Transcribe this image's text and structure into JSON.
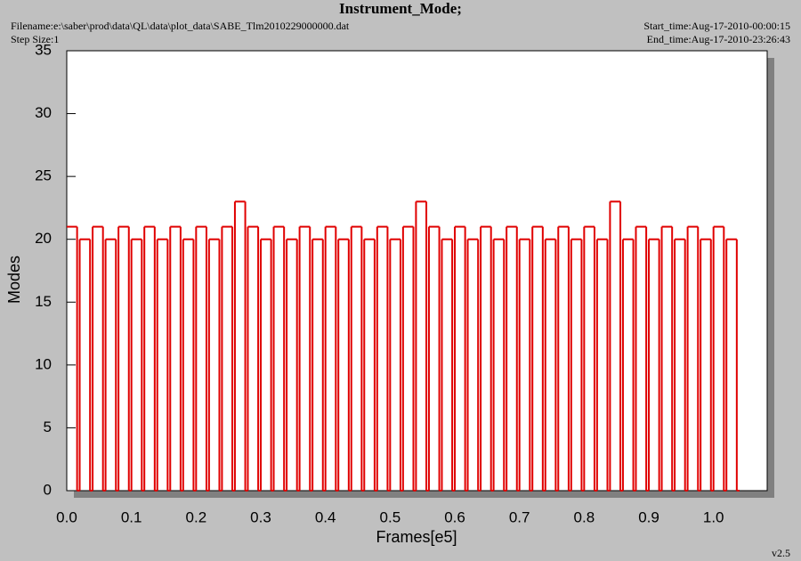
{
  "chart_data": {
    "type": "step",
    "title": "Instrument_Mode;",
    "filename": "Filename:e:\\saber\\prod\\data\\QL\\data\\plot_data\\SABE_Tlm2010229000000.dat",
    "step_size": "Step Size:1",
    "start_time": "Start_time:Aug-17-2010-00:00:15",
    "end_time": "End_time:Aug-17-2010-23:26:43",
    "version": "v2.5",
    "x_label": "Frames[e5]",
    "y_label": "Modes",
    "xlim": [
      0,
      1.083
    ],
    "ylim": [
      0,
      35
    ],
    "xticks": [
      {
        "value": 0,
        "label": "0.0"
      },
      0.1,
      0.2,
      0.3,
      0.4,
      0.5,
      0.6,
      0.7,
      0.8,
      0.9,
      {
        "value": 1,
        "label": "1.0"
      }
    ],
    "yticks": [
      0,
      5,
      10,
      15,
      20,
      25,
      30,
      35
    ],
    "series": [
      {
        "color": "#e00000",
        "x": [
          0,
          0.016,
          0.02,
          0.036,
          0.04,
          0.056,
          0.06,
          0.076,
          0.08,
          0.096,
          0.1,
          0.116,
          0.12,
          0.136,
          0.14,
          0.156,
          0.16,
          0.176,
          0.18,
          0.196,
          0.2,
          0.216,
          0.22,
          0.236,
          0.24,
          0.256,
          0.26,
          0.276,
          0.28,
          0.296,
          0.3,
          0.316,
          0.32,
          0.336,
          0.34,
          0.356,
          0.36,
          0.376,
          0.38,
          0.396,
          0.4,
          0.416,
          0.42,
          0.436,
          0.44,
          0.456,
          0.46,
          0.476,
          0.48,
          0.496,
          0.5,
          0.516,
          0.52,
          0.536,
          0.54,
          0.556,
          0.56,
          0.576,
          0.58,
          0.596,
          0.6,
          0.616,
          0.62,
          0.636,
          0.64,
          0.656,
          0.66,
          0.676,
          0.68,
          0.696,
          0.7,
          0.716,
          0.72,
          0.736,
          0.74,
          0.756,
          0.76,
          0.776,
          0.78,
          0.796,
          0.8,
          0.816,
          0.82,
          0.836,
          0.84,
          0.856,
          0.86,
          0.876,
          0.88,
          0.896,
          0.9,
          0.916,
          0.92,
          0.936,
          0.94,
          0.956,
          0.96,
          0.976,
          0.98,
          0.996,
          1.0,
          1.016,
          1.02,
          1.036
        ],
        "values": [
          21,
          0,
          20,
          0,
          21,
          0,
          20,
          0,
          21,
          0,
          20,
          0,
          21,
          0,
          20,
          0,
          21,
          0,
          20,
          0,
          21,
          0,
          20,
          0,
          21,
          0,
          23,
          0,
          21,
          0,
          20,
          0,
          21,
          0,
          20,
          0,
          21,
          0,
          20,
          0,
          21,
          0,
          20,
          0,
          21,
          0,
          20,
          0,
          21,
          0,
          20,
          0,
          21,
          0,
          23,
          0,
          21,
          0,
          20,
          0,
          21,
          0,
          20,
          0,
          21,
          0,
          20,
          0,
          21,
          0,
          20,
          0,
          21,
          0,
          20,
          0,
          21,
          0,
          20,
          0,
          21,
          0,
          20,
          0,
          23,
          0,
          20,
          0,
          21,
          0,
          20,
          0,
          21,
          0,
          20,
          0,
          21,
          0,
          20,
          0,
          21,
          0,
          20,
          0
        ]
      }
    ]
  }
}
